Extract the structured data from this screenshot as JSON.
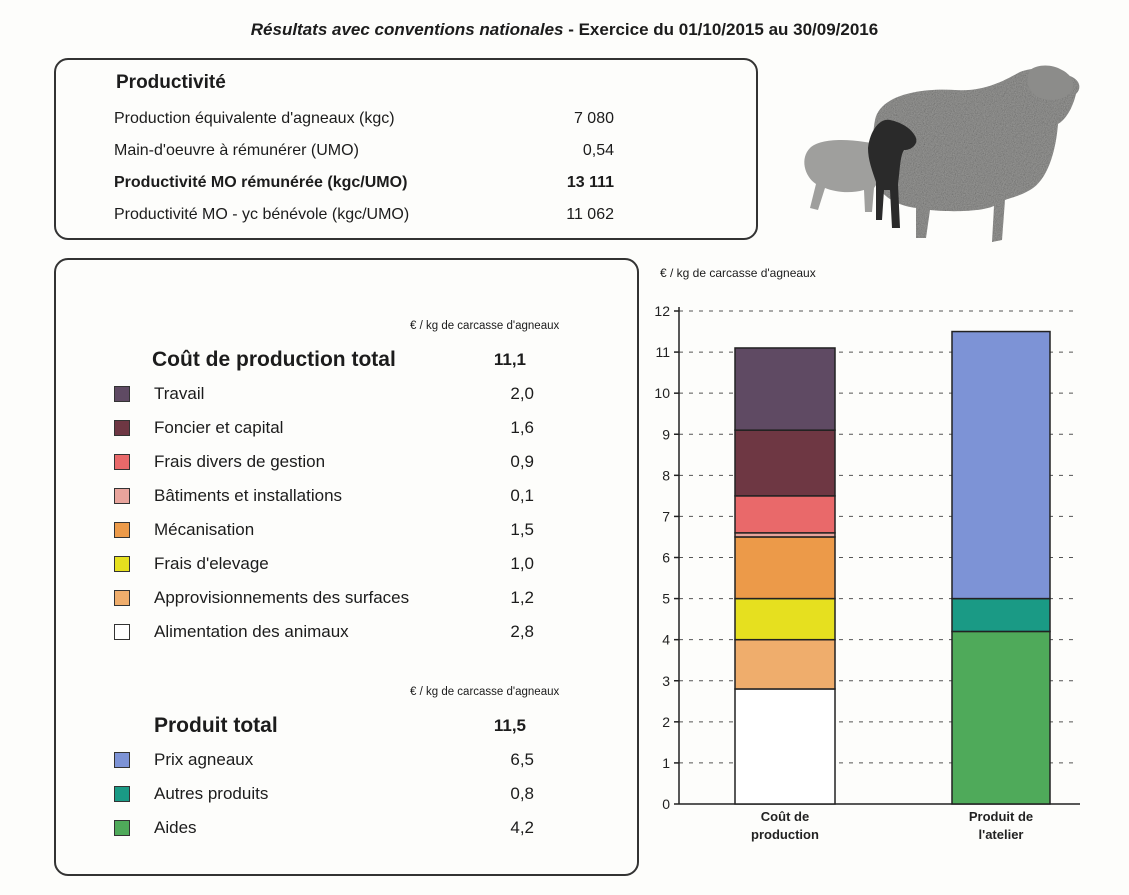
{
  "header": {
    "title": "Résultats avec conventions nationales",
    "separator": " - ",
    "period": "Exercice du 01/10/2015 au 30/09/2016"
  },
  "productivity": {
    "heading": "Productivité",
    "rows": [
      {
        "label": "Production équivalente d'agneaux (kgc)",
        "value": "7 080",
        "bold": false
      },
      {
        "label": "Main-d'oeuvre à rémunérer (UMO)",
        "value": "0,54",
        "bold": false
      },
      {
        "label": "Productivité MO rémunérée (kgc/UMO)",
        "value": "13 111",
        "bold": true
      },
      {
        "label": "Productivité MO - yc bénévole (kgc/UMO)",
        "value": "11 062",
        "bold": false
      }
    ]
  },
  "costs": {
    "unit_note": "€ / kg de carcasse d'agneaux",
    "title": "Coût de production total",
    "total": "11,1",
    "items": [
      {
        "label": "Travail",
        "value": "2,0",
        "color": "#5f4a63"
      },
      {
        "label": "Foncier et capital",
        "value": "1,6",
        "color": "#6e3743"
      },
      {
        "label": "Frais divers de gestion",
        "value": "0,9",
        "color": "#e9696a"
      },
      {
        "label": "Bâtiments et installations",
        "value": "0,1",
        "color": "#e8a49c"
      },
      {
        "label": "Mécanisation",
        "value": "1,5",
        "color": "#ec9a49"
      },
      {
        "label": "Frais d'elevage",
        "value": "1,0",
        "color": "#e6e01f"
      },
      {
        "label": "Approvisionnements des surfaces",
        "value": "1,2",
        "color": "#efad6c"
      },
      {
        "label": "Alimentation des animaux",
        "value": "2,8",
        "color": "#ffffff"
      }
    ]
  },
  "products": {
    "unit_note": "€ / kg de carcasse d'agneaux",
    "title": "Produit total",
    "total": "11,5",
    "items": [
      {
        "label": "Prix agneaux",
        "value": "6,5",
        "color": "#7d93d6"
      },
      {
        "label": "Autres produits",
        "value": "0,8",
        "color": "#1a9a85"
      },
      {
        "label": "Aides",
        "value": "4,2",
        "color": "#4faa5a"
      }
    ]
  },
  "chart_data": {
    "type": "bar",
    "stacked": true,
    "ylabel": "€ / kg de carcasse d'agneaux",
    "ylim": [
      0,
      12
    ],
    "yticks": [
      0,
      1,
      2,
      3,
      4,
      5,
      6,
      7,
      8,
      9,
      10,
      11,
      12
    ],
    "grid": true,
    "bars": [
      {
        "label": [
          "Coût de",
          "production"
        ],
        "segments": [
          {
            "name": "Alimentation des animaux",
            "value": 2.8,
            "color": "#ffffff"
          },
          {
            "name": "Approvisionnements des surfaces",
            "value": 1.2,
            "color": "#efad6c"
          },
          {
            "name": "Frais d'elevage",
            "value": 1.0,
            "color": "#e6e01f"
          },
          {
            "name": "Mécanisation",
            "value": 1.5,
            "color": "#ec9a49"
          },
          {
            "name": "Bâtiments et installations",
            "value": 0.1,
            "color": "#e8a49c"
          },
          {
            "name": "Frais divers de gestion",
            "value": 0.9,
            "color": "#e9696a"
          },
          {
            "name": "Foncier et capital",
            "value": 1.6,
            "color": "#6e3743"
          },
          {
            "name": "Travail",
            "value": 2.0,
            "color": "#5f4a63"
          }
        ]
      },
      {
        "label": [
          "Produit de",
          "l'atelier"
        ],
        "segments": [
          {
            "name": "Aides",
            "value": 4.2,
            "color": "#4faa5a"
          },
          {
            "name": "Autres produits",
            "value": 0.8,
            "color": "#1a9a85"
          },
          {
            "name": "Prix agneaux",
            "value": 6.5,
            "color": "#7d93d6"
          }
        ]
      }
    ]
  },
  "image": {
    "icon": "sheep-and-lamb-icon"
  }
}
